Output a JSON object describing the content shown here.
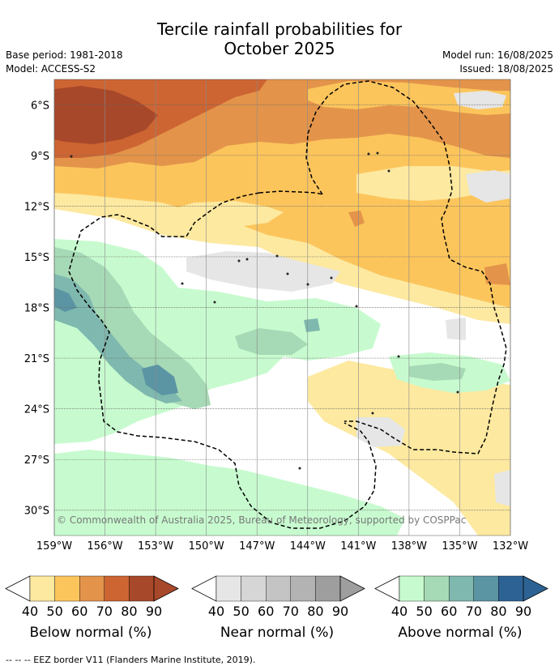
{
  "title_line1": "Tercile rainfall probabilities for",
  "title_line2": "October 2025",
  "base_period": "Base period: 1981-2018",
  "model": "Model: ACCESS-S2",
  "model_run": "Model run: 16/08/2025",
  "issued": "Issued: 18/08/2025",
  "copyright": "© Commonwealth of Australia 2025, Bureau of Meteorology, supported by COSPPac",
  "footer": "--  --  -- EEZ border V11 (Flanders Marine Institute, 2019).",
  "chart_data": {
    "type": "heatmap",
    "title": "Tercile rainfall probabilities for October 2025",
    "x_ticks": [
      "159°W",
      "156°W",
      "153°W",
      "150°W",
      "147°W",
      "144°W",
      "141°W",
      "138°W",
      "135°W",
      "132°W"
    ],
    "x_tick_values": [
      -159,
      -156,
      -153,
      -150,
      -147,
      -144,
      -141,
      -138,
      -135,
      -132
    ],
    "y_ticks": [
      "6°S",
      "9°S",
      "12°S",
      "15°S",
      "18°S",
      "21°S",
      "24°S",
      "27°S",
      "30°S"
    ],
    "y_tick_values": [
      -6,
      -9,
      -12,
      -15,
      -18,
      -21,
      -24,
      -27,
      -30
    ],
    "xlim": [
      -159,
      -132
    ],
    "ylim": [
      -31.5,
      -4.5
    ],
    "grid": true,
    "colorbars": [
      {
        "label": "Below normal (%)",
        "ticks": [
          40,
          50,
          60,
          70,
          80,
          90
        ],
        "colors": [
          "#fde9a0",
          "#fcc55c",
          "#e3944a",
          "#cd6533",
          "#a8482a"
        ]
      },
      {
        "label": "Near normal (%)",
        "ticks": [
          40,
          50,
          60,
          70,
          80,
          90
        ],
        "colors": [
          "#e6e6e6",
          "#d6d6d6",
          "#c4c4c4",
          "#b3b3b3",
          "#9e9e9e"
        ]
      },
      {
        "label": "Above normal (%)",
        "ticks": [
          40,
          50,
          60,
          70,
          80,
          90
        ],
        "colors": [
          "#c7fbcf",
          "#a6d9b5",
          "#7fb8ae",
          "#5b95a4",
          "#2d6394"
        ]
      }
    ],
    "regions": [
      {
        "category": "below",
        "level": 70,
        "description_lon": [
          -159,
          -150
        ],
        "description_lat": [
          -5,
          -8
        ]
      },
      {
        "category": "below",
        "level": 60,
        "lon": [
          -159,
          -132
        ],
        "lat": [
          -5,
          -10
        ]
      },
      {
        "category": "below",
        "level": 50,
        "lon": [
          -159,
          -132
        ],
        "lat": [
          -9,
          -18
        ]
      },
      {
        "category": "below",
        "level": 40,
        "lon": [
          -150,
          -132
        ],
        "lat": [
          -12,
          -20
        ]
      },
      {
        "category": "above",
        "level": 60,
        "lon": [
          -159,
          -151
        ],
        "lat": [
          -17,
          -24
        ]
      },
      {
        "category": "above",
        "level": 50,
        "lon": [
          -159,
          -148
        ],
        "lat": [
          -16,
          -25
        ]
      },
      {
        "category": "above",
        "level": 40,
        "lon": [
          -159,
          -138
        ],
        "lat": [
          -16,
          -31
        ]
      },
      {
        "category": "near",
        "level": 40,
        "lon": [
          -150,
          -132
        ],
        "lat": [
          -15,
          -25
        ]
      }
    ]
  }
}
